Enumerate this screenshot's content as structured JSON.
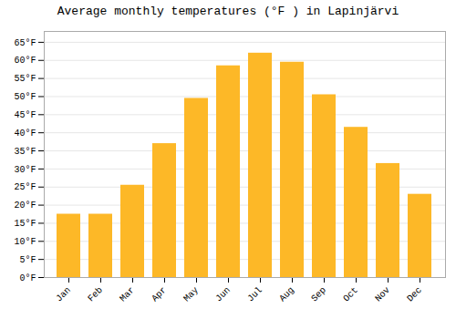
{
  "chart_data": {
    "type": "bar",
    "title": "Average monthly temperatures (°F ) in Lapinjärvi",
    "categories": [
      "Jan",
      "Feb",
      "Mar",
      "Apr",
      "May",
      "Jun",
      "Jul",
      "Aug",
      "Sep",
      "Oct",
      "Nov",
      "Dec"
    ],
    "values": [
      17.5,
      17.5,
      25.5,
      37.0,
      49.5,
      58.5,
      62.0,
      59.5,
      50.5,
      41.5,
      31.5,
      23.0
    ],
    "color": "#FDB827",
    "ylim": [
      0,
      68
    ],
    "yticks": [
      {
        "value": 0,
        "label": "0°F"
      },
      {
        "value": 5,
        "label": "5°F"
      },
      {
        "value": 10,
        "label": "10°F"
      },
      {
        "value": 15,
        "label": "15°F"
      },
      {
        "value": 20,
        "label": "20°F"
      },
      {
        "value": 25,
        "label": "25°F"
      },
      {
        "value": 30,
        "label": "30°F"
      },
      {
        "value": 35,
        "label": "35°F"
      },
      {
        "value": 40,
        "label": "40°F"
      },
      {
        "value": 45,
        "label": "45°F"
      },
      {
        "value": 50,
        "label": "50°F"
      },
      {
        "value": 55,
        "label": "55°F"
      },
      {
        "value": 60,
        "label": "60°F"
      },
      {
        "value": 65,
        "label": "65°F"
      }
    ],
    "grid": true
  }
}
